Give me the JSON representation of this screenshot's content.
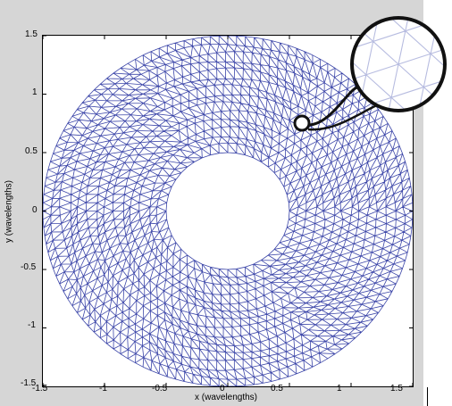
{
  "figure": {
    "xlabel": "x (wavelengths)",
    "ylabel": "y (wavelengths)",
    "x_ticks": [
      "-1.5",
      "-1",
      "-0.5",
      "0",
      "0.5",
      "1",
      "1.5"
    ],
    "y_ticks": [
      "1.5",
      "1",
      "0.5",
      "0",
      "-0.5",
      "-1",
      "-1.5"
    ],
    "axis_range": {
      "x": [
        -1.5,
        1.5
      ],
      "y": [
        -1.5,
        1.5
      ]
    },
    "mesh": {
      "shape": "annulus",
      "outer_radius": 1.5,
      "inner_radius": 0.5,
      "element_type": "triangle",
      "color": "#2e3a9e"
    },
    "magnifier": {
      "focus_point": [
        0.69,
        0.7
      ],
      "content": "zoomed triangular mesh detail"
    },
    "colors": {
      "figure_background": "#d6d6d6",
      "axes_background": "#ffffff",
      "mesh_line": "#3b45a8",
      "callout": "#111111"
    }
  }
}
